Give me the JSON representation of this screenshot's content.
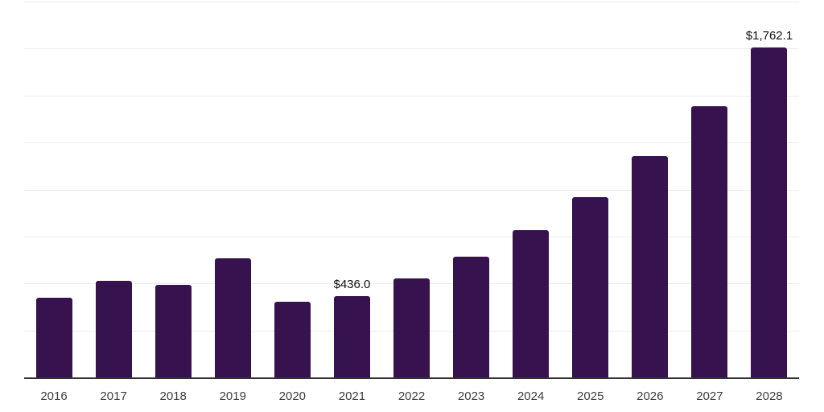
{
  "chart": {
    "background_color": "#ffffff",
    "bar_color": "#36124e",
    "gridline_color": "#ededed",
    "axis_color": "#333333",
    "tick_label_color": "#3d3d3d",
    "value_label_color": "#111111"
  },
  "chart_data": {
    "type": "bar",
    "title": "",
    "categories": [
      "2016",
      "2017",
      "2018",
      "2019",
      "2020",
      "2021",
      "2022",
      "2023",
      "2024",
      "2025",
      "2026",
      "2027",
      "2028"
    ],
    "values": [
      430,
      518,
      497,
      637,
      405,
      436.0,
      530,
      645,
      790,
      962,
      1180,
      1448,
      1762.1
    ],
    "value_labels": [
      "",
      "",
      "",
      "",
      "",
      "$436.0",
      "",
      "",
      "",
      "",
      "",
      "",
      "$1,762.1"
    ],
    "xlabel": "",
    "ylabel": "",
    "ylim": [
      0,
      2000
    ],
    "gridline_step": 250,
    "grid": "horizontal",
    "y_axis_tick_labels": "none",
    "legend_position": "none"
  }
}
